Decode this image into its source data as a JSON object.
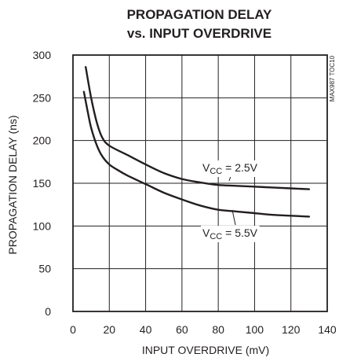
{
  "chart_data": {
    "type": "line",
    "title_line1": "PROPAGATION DELAY",
    "title_line2": "vs. INPUT OVERDRIVE",
    "xlabel": "INPUT OVERDRIVE (mV)",
    "ylabel": "PROPAGATION DELAY (ns)",
    "figure_id": "MAX987 TOC10",
    "xlim": [
      0,
      140
    ],
    "ylim": [
      0,
      300
    ],
    "x_ticks": [
      0,
      20,
      40,
      60,
      80,
      100,
      120,
      140
    ],
    "y_ticks": [
      0,
      50,
      100,
      150,
      200,
      250,
      300
    ],
    "grid": true,
    "series": [
      {
        "name": "VCC = 2.5V",
        "label_main": "V",
        "label_sub": "CC",
        "label_rest": " = 2.5V",
        "x": [
          7,
          10,
          13,
          16,
          20,
          30,
          40,
          50,
          60,
          70,
          80,
          90,
          100,
          110,
          120,
          130
        ],
        "values": [
          286,
          250,
          222,
          204,
          194,
          183,
          172,
          162,
          155,
          151,
          148,
          147,
          146,
          145,
          144,
          143
        ]
      },
      {
        "name": "VCC = 5.5V",
        "label_main": "V",
        "label_sub": "CC",
        "label_rest": " = 5.5V",
        "x": [
          6,
          8,
          10,
          13,
          16,
          20,
          25,
          30,
          40,
          50,
          60,
          70,
          80,
          90,
          100,
          110,
          120,
          130
        ],
        "values": [
          257,
          235,
          215,
          195,
          182,
          172,
          165,
          159,
          149,
          139,
          131,
          124,
          119,
          117,
          115,
          113,
          112,
          111
        ]
      }
    ]
  }
}
